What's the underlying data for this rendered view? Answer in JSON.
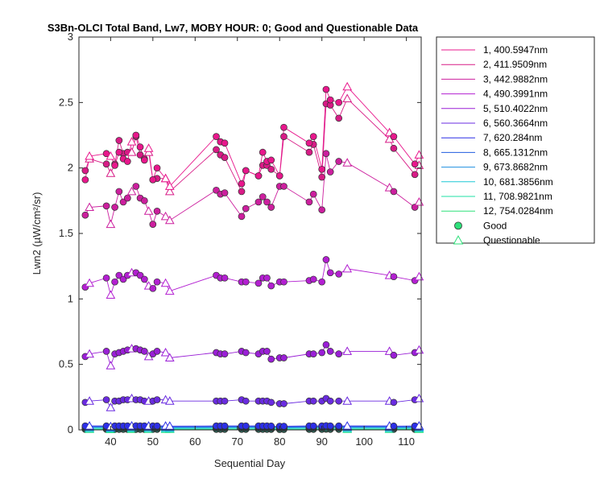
{
  "chart_data": {
    "type": "line",
    "title": "S3Bn-OLCI Total Band, Lw7, MOBY HOUR: 0;  Good and Questionable Data",
    "xlabel": "Sequential Day",
    "ylabel": "Lwn2 (µW/cm²/sr)",
    "xlim": [
      32.5,
      113.5
    ],
    "ylim": [
      0,
      3
    ],
    "xticks": [
      40,
      50,
      60,
      70,
      80,
      90,
      100,
      110
    ],
    "yticks": [
      0,
      0.5,
      1,
      1.5,
      2,
      2.5,
      3
    ],
    "ytick_labels": [
      "0",
      "0.5",
      "1",
      "1.5",
      "2",
      "2.5",
      "3"
    ],
    "grid": false,
    "legend_placement": "outside-right",
    "x": [
      34,
      35,
      39,
      40,
      41,
      42,
      43,
      44,
      45,
      46,
      47,
      48,
      49,
      50,
      51,
      53,
      54,
      65,
      66,
      67,
      71,
      72,
      75,
      76,
      77,
      78,
      80,
      81,
      87,
      88,
      90,
      91,
      92,
      94,
      96,
      106,
      107,
      112,
      113
    ],
    "flags": [
      "G",
      "Q",
      "G",
      "Q",
      "G",
      "G",
      "G",
      "G",
      "Q",
      "G",
      "G",
      "G",
      "Q",
      "G",
      "G",
      "Q",
      "Q",
      "G",
      "G",
      "G",
      "G",
      "G",
      "G",
      "G",
      "G",
      "G",
      "G",
      "G",
      "G",
      "G",
      "G",
      "G",
      "G",
      "G",
      "Q",
      "Q",
      "G",
      "G",
      "Q"
    ],
    "series": [
      {
        "name": "1, 400.5947nm",
        "color": "#e8178c",
        "values": [
          1.91,
          2.09,
          2.11,
          2.09,
          2.02,
          2.12,
          2.07,
          2.05,
          2.2,
          2.25,
          2.16,
          2.06,
          2.15,
          1.91,
          2.0,
          1.92,
          1.86,
          2.24,
          2.2,
          2.19,
          1.88,
          1.98,
          1.94,
          2.12,
          2.05,
          2.06,
          1.94,
          2.31,
          2.19,
          2.24,
          1.99,
          2.6,
          2.52,
          2.5,
          2.62,
          2.27,
          2.24,
          2.03,
          2.1
        ]
      },
      {
        "name": "2, 411.9509nm",
        "color": "#d81b86",
        "values": [
          1.98,
          2.07,
          2.03,
          1.96,
          2.03,
          2.21,
          2.11,
          2.12,
          2.12,
          2.24,
          2.1,
          2.07,
          2.12,
          1.91,
          1.92,
          1.92,
          1.82,
          2.14,
          2.1,
          2.08,
          1.82,
          1.98,
          1.94,
          2.02,
          2.02,
          1.99,
          1.94,
          2.24,
          2.12,
          2.18,
          1.93,
          2.49,
          2.48,
          2.38,
          2.53,
          2.22,
          2.15,
          1.95,
          2.02
        ]
      },
      {
        "name": "3, 442.9882nm",
        "color": "#cc1f9e",
        "values": [
          1.64,
          1.7,
          1.71,
          1.57,
          1.7,
          1.82,
          1.74,
          1.77,
          1.82,
          1.86,
          1.77,
          1.75,
          1.67,
          1.57,
          1.67,
          1.63,
          1.6,
          1.83,
          1.8,
          1.81,
          1.63,
          1.69,
          1.74,
          1.78,
          1.74,
          1.7,
          1.86,
          1.86,
          1.74,
          1.8,
          1.68,
          2.11,
          1.97,
          2.05,
          2.04,
          1.85,
          1.82,
          1.7,
          1.74
        ]
      },
      {
        "name": "4, 490.3991nm",
        "color": "#b31fd1",
        "values": [
          1.09,
          1.12,
          1.16,
          1.03,
          1.13,
          1.18,
          1.15,
          1.18,
          1.2,
          1.2,
          1.18,
          1.15,
          1.1,
          1.08,
          1.13,
          1.12,
          1.06,
          1.18,
          1.16,
          1.16,
          1.13,
          1.13,
          1.12,
          1.16,
          1.16,
          1.1,
          1.13,
          1.13,
          1.14,
          1.15,
          1.13,
          1.3,
          1.2,
          1.19,
          1.23,
          1.18,
          1.17,
          1.14,
          1.17
        ]
      },
      {
        "name": "5, 510.4022nm",
        "color": "#9a1fd6",
        "values": [
          0.56,
          0.58,
          0.6,
          0.49,
          0.58,
          0.59,
          0.6,
          0.61,
          0.62,
          0.62,
          0.61,
          0.6,
          0.56,
          0.58,
          0.6,
          0.59,
          0.55,
          0.59,
          0.58,
          0.58,
          0.6,
          0.59,
          0.58,
          0.6,
          0.6,
          0.54,
          0.55,
          0.55,
          0.58,
          0.58,
          0.59,
          0.65,
          0.6,
          0.58,
          0.6,
          0.6,
          0.57,
          0.59,
          0.61
        ]
      },
      {
        "name": "6, 560.3664nm",
        "color": "#6a2be0",
        "values": [
          0.21,
          0.22,
          0.23,
          0.17,
          0.22,
          0.22,
          0.23,
          0.23,
          0.24,
          0.23,
          0.23,
          0.22,
          0.22,
          0.22,
          0.23,
          0.23,
          0.22,
          0.22,
          0.22,
          0.22,
          0.23,
          0.22,
          0.22,
          0.22,
          0.22,
          0.21,
          0.2,
          0.2,
          0.22,
          0.22,
          0.22,
          0.24,
          0.22,
          0.22,
          0.22,
          0.22,
          0.21,
          0.23,
          0.24
        ]
      },
      {
        "name": "7,  620.284nm",
        "color": "#2d2fe6",
        "values": [
          0.03,
          0.03,
          0.03,
          0.025,
          0.03,
          0.03,
          0.03,
          0.03,
          0.031,
          0.031,
          0.03,
          0.03,
          0.03,
          0.03,
          0.03,
          0.03,
          0.029,
          0.03,
          0.03,
          0.03,
          0.03,
          0.03,
          0.03,
          0.03,
          0.03,
          0.029,
          0.028,
          0.028,
          0.03,
          0.03,
          0.03,
          0.032,
          0.03,
          0.03,
          0.03,
          0.03,
          0.029,
          0.03,
          0.031
        ]
      },
      {
        "name": "8, 665.1312nm",
        "color": "#1f5be0",
        "values": [
          0.024,
          0.024,
          0.024,
          0.02,
          0.024,
          0.024,
          0.024,
          0.024,
          0.025,
          0.025,
          0.024,
          0.024,
          0.024,
          0.024,
          0.024,
          0.024,
          0.023,
          0.024,
          0.024,
          0.024,
          0.024,
          0.024,
          0.024,
          0.024,
          0.024,
          0.023,
          0.022,
          0.022,
          0.024,
          0.024,
          0.024,
          0.026,
          0.024,
          0.024,
          0.024,
          0.024,
          0.023,
          0.024,
          0.025
        ]
      },
      {
        "name": "9, 673.8682nm",
        "color": "#1f8fe0",
        "values": [
          0.02,
          0.02,
          0.02,
          0.017,
          0.02,
          0.02,
          0.02,
          0.02,
          0.021,
          0.021,
          0.02,
          0.02,
          0.02,
          0.02,
          0.02,
          0.02,
          0.019,
          0.02,
          0.02,
          0.02,
          0.02,
          0.02,
          0.02,
          0.02,
          0.02,
          0.019,
          0.018,
          0.018,
          0.02,
          0.02,
          0.02,
          0.022,
          0.02,
          0.02,
          0.02,
          0.02,
          0.019,
          0.02,
          0.021
        ]
      },
      {
        "name": "10, 681.3856nm",
        "color": "#1fc9d6",
        "values": [
          0.014,
          0.014,
          0.014,
          0.012,
          0.014,
          0.014,
          0.014,
          0.014,
          0.015,
          0.015,
          0.014,
          0.014,
          0.014,
          0.014,
          0.014,
          0.014,
          0.013,
          0.014,
          0.014,
          0.014,
          0.014,
          0.014,
          0.014,
          0.014,
          0.014,
          0.013,
          0.013,
          0.013,
          0.014,
          0.014,
          0.014,
          0.016,
          0.014,
          0.014,
          0.014,
          0.014,
          0.013,
          0.014,
          0.015
        ]
      },
      {
        "name": "11, 708.9821nm",
        "color": "#1fe0a6",
        "values": [
          0.008,
          0.008,
          0.008,
          0.007,
          0.008,
          0.008,
          0.008,
          0.008,
          0.009,
          0.009,
          0.008,
          0.008,
          0.008,
          0.008,
          0.008,
          0.008,
          0.008,
          0.008,
          0.008,
          0.008,
          0.008,
          0.008,
          0.008,
          0.008,
          0.008,
          0.008,
          0.007,
          0.007,
          0.008,
          0.008,
          0.008,
          0.009,
          0.008,
          0.008,
          0.008,
          0.008,
          0.008,
          0.008,
          0.009
        ]
      },
      {
        "name": "12, 754.0284nm",
        "color": "#2ee07a",
        "values": [
          0.004,
          0.004,
          0.004,
          0.003,
          0.004,
          0.004,
          0.004,
          0.004,
          0.004,
          0.004,
          0.004,
          0.004,
          0.004,
          0.004,
          0.004,
          0.004,
          0.004,
          0.004,
          0.004,
          0.004,
          0.004,
          0.004,
          0.004,
          0.004,
          0.004,
          0.004,
          0.003,
          0.003,
          0.004,
          0.004,
          0.004,
          0.005,
          0.004,
          0.004,
          0.004,
          0.004,
          0.004,
          0.004,
          0.004
        ]
      }
    ],
    "marker_legend": [
      {
        "label": "Good",
        "marker": "circle",
        "color": "#2ee07a"
      },
      {
        "label": "Questionable",
        "marker": "triangle",
        "color": "#2ee07a"
      }
    ]
  }
}
